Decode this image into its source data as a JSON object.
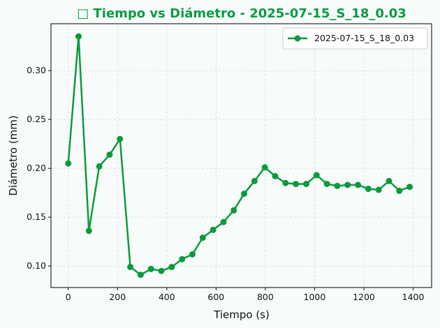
{
  "chart_data": {
    "type": "line",
    "title": "□ Tiempo vs Diámetro - 2025-07-15_S_18_0.03",
    "xlabel": "Tiempo (s)",
    "ylabel": "Diámetro (mm)",
    "xlim": [
      -70,
      1475
    ],
    "ylim": [
      0.078,
      0.348
    ],
    "xticks": [
      0,
      200,
      400,
      600,
      800,
      1000,
      1200,
      1400
    ],
    "yticks": [
      0.1,
      0.15,
      0.2,
      0.25,
      0.3
    ],
    "xtick_labels": [
      "0",
      "200",
      "400",
      "600",
      "800",
      "1000",
      "1200",
      "1400"
    ],
    "ytick_labels": [
      "0.10",
      "0.15",
      "0.20",
      "0.25",
      "0.30"
    ],
    "grid": true,
    "legend_position": "top-right",
    "color": "#0b9a3c",
    "series": [
      {
        "name": "2025-07-15_S_18_0.03",
        "x": [
          0,
          42,
          84,
          126,
          168,
          210,
          252,
          294,
          336,
          378,
          420,
          462,
          504,
          546,
          588,
          630,
          672,
          714,
          756,
          798,
          840,
          882,
          924,
          966,
          1008,
          1050,
          1092,
          1134,
          1176,
          1218,
          1260,
          1302,
          1344,
          1386
        ],
        "y": [
          0.205,
          0.335,
          0.136,
          0.202,
          0.214,
          0.23,
          0.099,
          0.091,
          0.097,
          0.095,
          0.099,
          0.107,
          0.112,
          0.129,
          0.137,
          0.145,
          0.157,
          0.174,
          0.187,
          0.201,
          0.192,
          0.185,
          0.184,
          0.184,
          0.193,
          0.184,
          0.182,
          0.183,
          0.183,
          0.179,
          0.178,
          0.187,
          0.177,
          0.181
        ]
      }
    ]
  }
}
